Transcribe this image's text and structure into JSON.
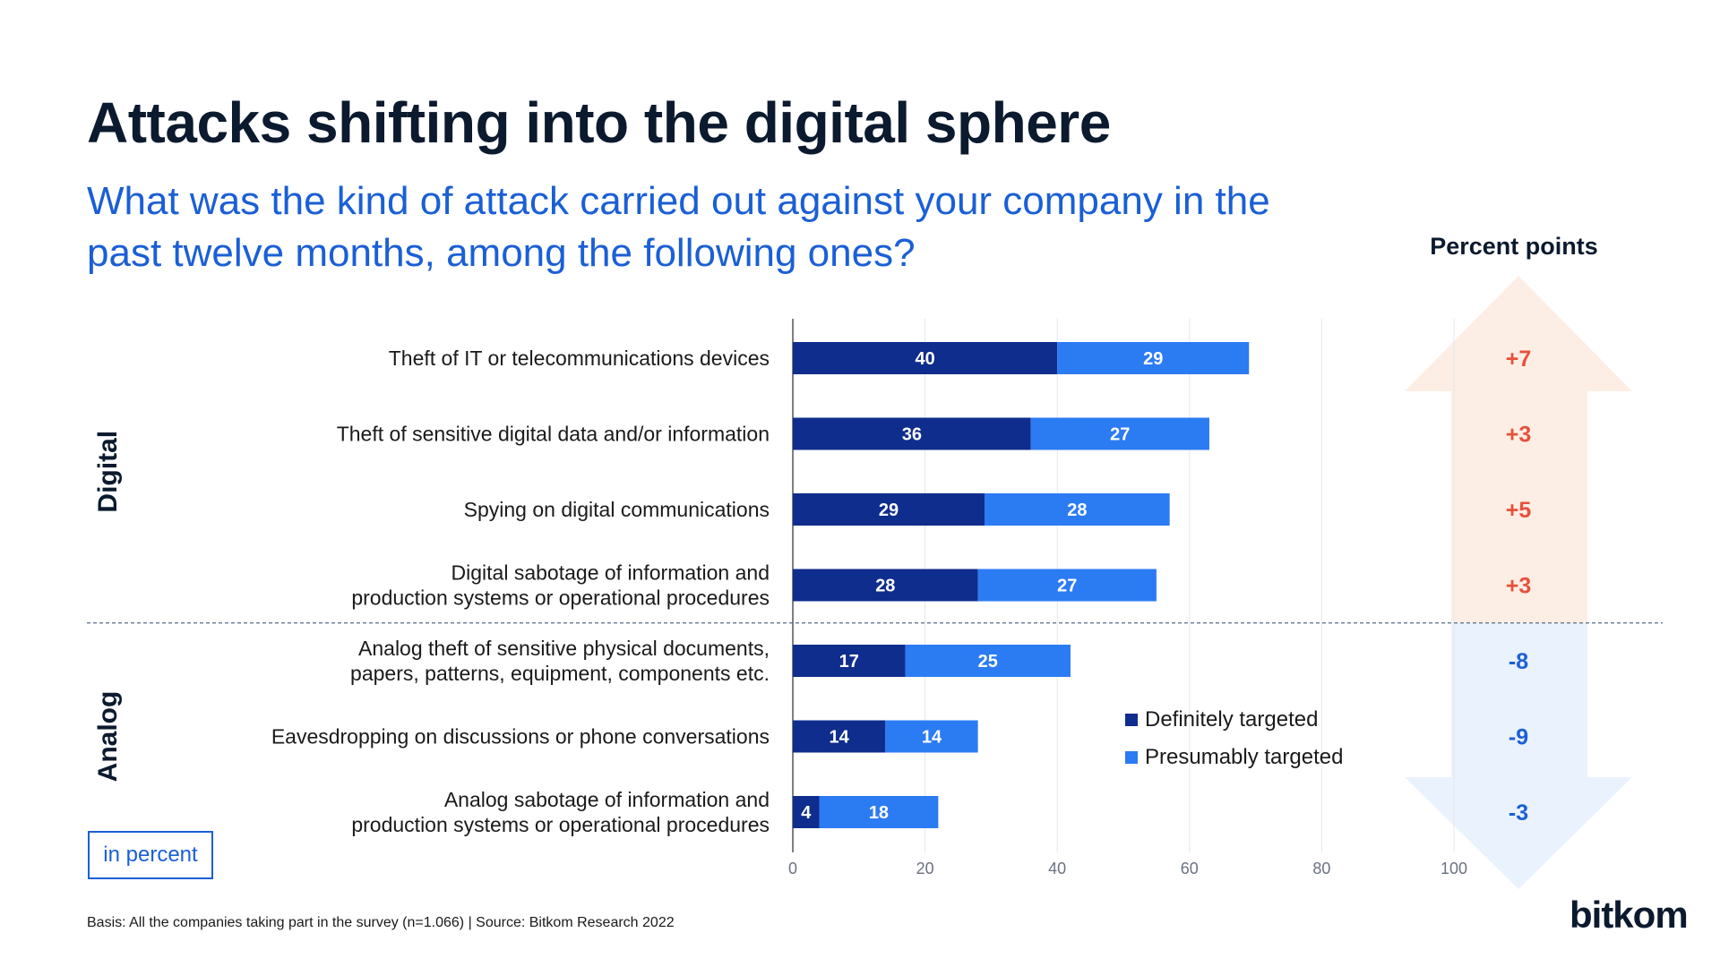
{
  "header": {
    "title": "Attacks shifting into the digital sphere",
    "subtitle": "What was the kind of attack carried out against your company in the past twelve months, among the following ones?"
  },
  "chart_data": {
    "type": "bar",
    "orientation": "horizontal",
    "stacked": true,
    "categories": [
      [
        "Theft of IT or telecommunications devices"
      ],
      [
        "Theft of sensitive digital data and/or information"
      ],
      [
        "Spying on digital communications"
      ],
      [
        "Digital sabotage of information and",
        "production systems or operational procedures"
      ],
      [
        "Analog theft of sensitive physical documents,",
        "papers, patterns, equipment, components etc."
      ],
      [
        "Eavesdropping on discussions or phone conversations"
      ],
      [
        "Analog sabotage of information and",
        "production systems or operational procedures"
      ]
    ],
    "groups": [
      {
        "name": "Digital",
        "rows": [
          0,
          1,
          2,
          3
        ]
      },
      {
        "name": "Analog",
        "rows": [
          4,
          5,
          6
        ]
      }
    ],
    "series": [
      {
        "name": "Definitely targeted",
        "color": "#0f2d8c",
        "values": [
          40,
          36,
          29,
          28,
          17,
          14,
          4
        ]
      },
      {
        "name": "Presumably targeted",
        "color": "#2b7bf3",
        "values": [
          29,
          27,
          28,
          27,
          25,
          14,
          18
        ]
      }
    ],
    "xlim": [
      0,
      100
    ],
    "xticks": [
      0,
      20,
      40,
      60,
      80,
      100
    ],
    "grid": true,
    "legend_position": "bottom-right",
    "unit": "in percent",
    "change": {
      "title": "Percent points",
      "values": [
        "+7",
        "+3",
        "+5",
        "+3",
        "-8",
        "-9",
        "-3"
      ],
      "positive_color": "#e8503a",
      "negative_color": "#1a5fd6"
    }
  },
  "footer": {
    "note": "Basis: All the companies taking part in the survey (n=1.066) | Source: Bitkom Research 2022",
    "logo": "bitkom"
  }
}
